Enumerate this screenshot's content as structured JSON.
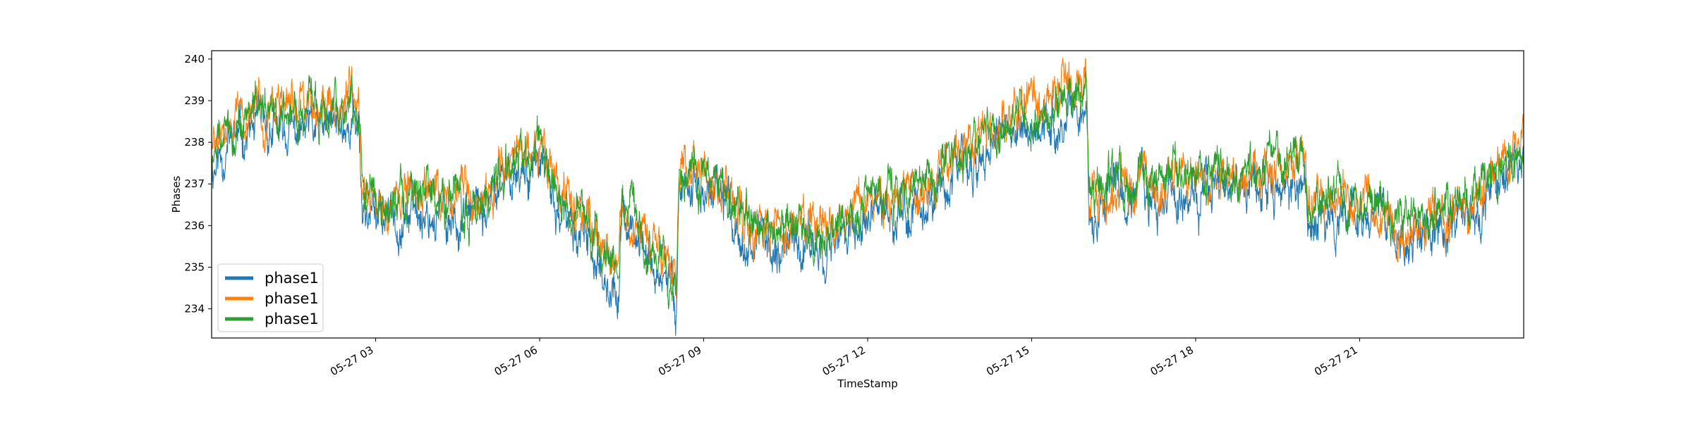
{
  "chart_data": {
    "type": "line",
    "title": "",
    "xlabel": "TimeStamp",
    "ylabel": "Phases",
    "x_range": [
      "05-27 00:00",
      "05-27 23:59"
    ],
    "ylim": [
      233.3,
      240.2
    ],
    "y_ticks": [
      234,
      235,
      236,
      237,
      238,
      239,
      240
    ],
    "y_tick_labels": [
      "234",
      "235",
      "236",
      "237",
      "238",
      "239",
      "240"
    ],
    "x_ticks": [
      3,
      6,
      9,
      12,
      15,
      18,
      21
    ],
    "x_tick_labels": [
      "05-27 03",
      "05-27 06",
      "05-27 09",
      "05-27 12",
      "05-27 15",
      "05-27 18",
      "05-27 21"
    ],
    "grid": false,
    "legend": {
      "position": "lower-left"
    },
    "x_unit": "hours since 05-27 00:00",
    "series": [
      {
        "name": "phase1",
        "color": "#1f77b4",
        "x": [
          0,
          0.4,
          0.8,
          1.2,
          1.6,
          2,
          2.4,
          2.7,
          2.75,
          3,
          3.5,
          4,
          4.5,
          5,
          5.5,
          6,
          6.3,
          6.6,
          7,
          7.3,
          7.45,
          7.5,
          7.8,
          8.1,
          8.4,
          8.5,
          8.55,
          8.8,
          9,
          9.3,
          9.6,
          10,
          10.5,
          11,
          11.5,
          12,
          12.5,
          13,
          13.5,
          14,
          14.5,
          15,
          15.5,
          16,
          16.05,
          16.5,
          17,
          17.5,
          18,
          18.5,
          19,
          19.5,
          20,
          20.05,
          20.5,
          21,
          21.5,
          22,
          22.5,
          23,
          23.5,
          24
        ],
        "y": [
          237.4,
          238.1,
          238.3,
          238.2,
          238.2,
          238.3,
          238.4,
          238.5,
          236.5,
          236.2,
          236.3,
          236.3,
          236.1,
          236.3,
          237.3,
          237.5,
          236.4,
          235.9,
          235.3,
          234.6,
          234.1,
          236.3,
          235.6,
          235.0,
          234.5,
          234.3,
          237.1,
          237.0,
          236.8,
          236.6,
          236.1,
          235.6,
          235.5,
          235.6,
          235.7,
          236.0,
          236.3,
          236.5,
          237.2,
          237.6,
          238.1,
          238.3,
          238.7,
          239.0,
          236.3,
          236.6,
          236.7,
          236.7,
          236.8,
          236.8,
          236.9,
          237.0,
          237.1,
          236.0,
          236.4,
          236.2,
          235.9,
          235.6,
          235.9,
          236.4,
          236.9,
          237.6
        ]
      },
      {
        "name": "phase1",
        "color": "#ff7f0e",
        "x": [
          0,
          0.4,
          0.8,
          1.2,
          1.6,
          2,
          2.4,
          2.7,
          2.75,
          3,
          3.5,
          4,
          4.5,
          5,
          5.5,
          6,
          6.3,
          6.6,
          7,
          7.3,
          7.45,
          7.5,
          7.8,
          8.1,
          8.4,
          8.5,
          8.55,
          8.8,
          9,
          9.3,
          9.6,
          10,
          10.5,
          11,
          11.5,
          12,
          12.5,
          13,
          13.5,
          14,
          14.5,
          15,
          15.5,
          16,
          16.05,
          16.5,
          17,
          17.5,
          18,
          18.5,
          19,
          19.5,
          20,
          20.05,
          20.5,
          21,
          21.5,
          22,
          22.5,
          23,
          23.5,
          24
        ],
        "y": [
          237.8,
          238.5,
          238.7,
          238.8,
          238.9,
          238.9,
          239.0,
          239.1,
          237.0,
          236.8,
          236.8,
          236.8,
          236.6,
          236.8,
          237.7,
          238.0,
          236.9,
          236.4,
          235.8,
          235.1,
          234.8,
          236.6,
          236.0,
          235.4,
          235.0,
          234.8,
          237.6,
          237.5,
          237.3,
          237.1,
          236.6,
          236.1,
          236.0,
          236.1,
          236.2,
          236.5,
          236.8,
          237.0,
          237.6,
          238.0,
          238.5,
          238.7,
          239.1,
          239.4,
          236.5,
          236.9,
          237.0,
          237.0,
          237.1,
          237.1,
          237.2,
          237.3,
          237.4,
          236.4,
          236.8,
          236.5,
          236.2,
          235.8,
          236.1,
          236.7,
          237.2,
          238.1
        ]
      },
      {
        "name": "phase1",
        "color": "#2ca02c",
        "x": [
          0,
          0.4,
          0.8,
          1.2,
          1.6,
          2,
          2.4,
          2.7,
          2.75,
          3,
          3.5,
          4,
          4.5,
          5,
          5.5,
          6,
          6.3,
          6.6,
          7,
          7.3,
          7.45,
          7.5,
          7.8,
          8.1,
          8.4,
          8.5,
          8.55,
          8.8,
          9,
          9.3,
          9.6,
          10,
          10.5,
          11,
          11.5,
          12,
          12.5,
          13,
          13.5,
          14,
          14.5,
          15,
          15.5,
          16,
          16.05,
          16.5,
          17,
          17.5,
          18,
          18.5,
          19,
          19.5,
          20,
          20.05,
          20.5,
          21,
          21.5,
          22,
          22.5,
          23,
          23.5,
          24
        ],
        "y": [
          237.7,
          238.4,
          238.6,
          238.7,
          238.8,
          238.8,
          238.9,
          238.9,
          236.9,
          236.7,
          236.7,
          236.7,
          236.5,
          236.7,
          237.6,
          237.9,
          236.8,
          236.3,
          235.7,
          235.0,
          234.7,
          236.5,
          235.9,
          235.3,
          234.9,
          234.7,
          237.5,
          237.4,
          237.2,
          237.0,
          236.5,
          236.0,
          235.9,
          236.0,
          236.1,
          236.4,
          236.7,
          236.9,
          237.5,
          237.9,
          238.4,
          238.6,
          239.0,
          239.4,
          236.6,
          237.0,
          237.1,
          237.1,
          237.2,
          237.2,
          237.3,
          237.4,
          237.5,
          236.5,
          236.9,
          236.6,
          236.3,
          235.9,
          236.2,
          236.8,
          237.3,
          238.0
        ]
      }
    ]
  }
}
